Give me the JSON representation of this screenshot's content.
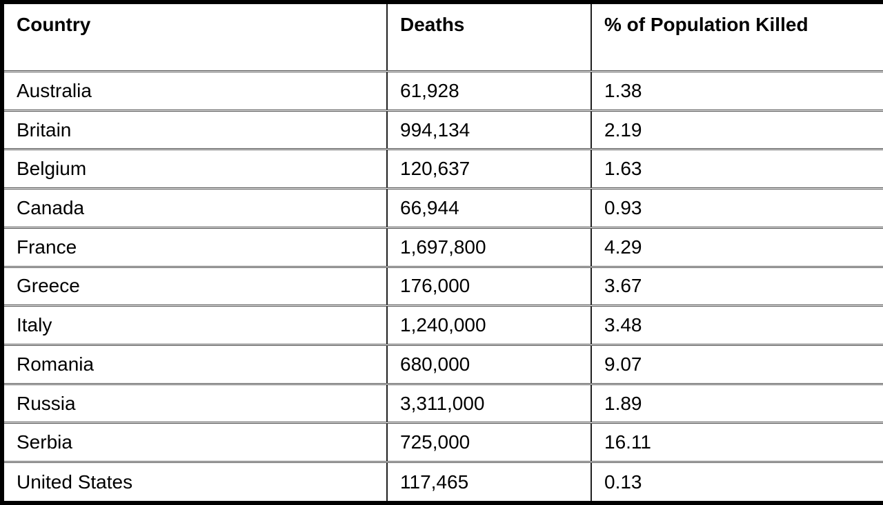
{
  "chart_data": {
    "type": "table",
    "columns": [
      "Country",
      "Deaths",
      "% of Population Killed"
    ],
    "rows": [
      [
        "Australia",
        "61,928",
        "1.38"
      ],
      [
        "Britain",
        "994,134",
        "2.19"
      ],
      [
        "Belgium",
        "120,637",
        "1.63"
      ],
      [
        "Canada",
        "66,944",
        "0.93"
      ],
      [
        "France",
        "1,697,800",
        "4.29"
      ],
      [
        "Greece",
        "176,000",
        "3.67"
      ],
      [
        "Italy",
        "1,240,000",
        "3.48"
      ],
      [
        "Romania",
        "680,000",
        "9.07"
      ],
      [
        "Russia",
        "3,311,000",
        "1.89"
      ],
      [
        "Serbia",
        "725,000",
        "16.11"
      ],
      [
        "United States",
        "117,465",
        "0.13"
      ]
    ],
    "title": "",
    "legend": null,
    "grid": true
  },
  "colors": {
    "outer_border": "#000000",
    "column_line": "#1f1f1f",
    "row_line": "#4a4a4a",
    "text": "#000000",
    "background": "#ffffff"
  }
}
